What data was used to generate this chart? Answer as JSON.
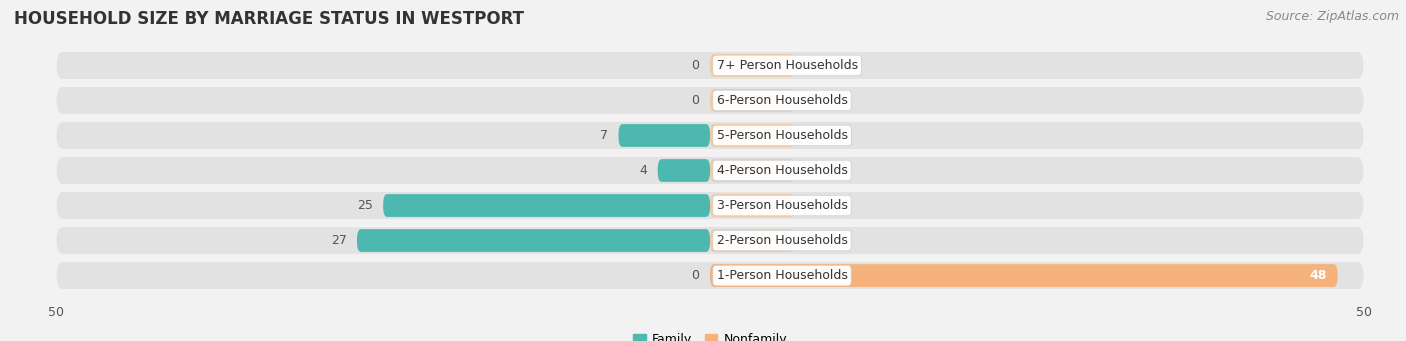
{
  "title": "HOUSEHOLD SIZE BY MARRIAGE STATUS IN WESTPORT",
  "source": "Source: ZipAtlas.com",
  "categories": [
    "7+ Person Households",
    "6-Person Households",
    "5-Person Households",
    "4-Person Households",
    "3-Person Households",
    "2-Person Households",
    "1-Person Households"
  ],
  "family_values": [
    0,
    0,
    7,
    4,
    25,
    27,
    0
  ],
  "nonfamily_values": [
    0,
    0,
    0,
    0,
    0,
    0,
    48
  ],
  "family_color": "#4DB8B0",
  "nonfamily_color": "#F5B27A",
  "nonfamily_small_color": "#F5C99A",
  "family_label": "Family",
  "nonfamily_label": "Nonfamily",
  "xlim": [
    -50,
    50
  ],
  "xticklabels": [
    "50",
    "50"
  ],
  "background_color": "#f2f2f2",
  "bar_bg_color": "#e2e2e2",
  "title_fontsize": 12,
  "source_fontsize": 9,
  "label_fontsize": 9,
  "value_fontsize": 9,
  "bar_height": 0.65,
  "bar_bg_extra": 0.12
}
